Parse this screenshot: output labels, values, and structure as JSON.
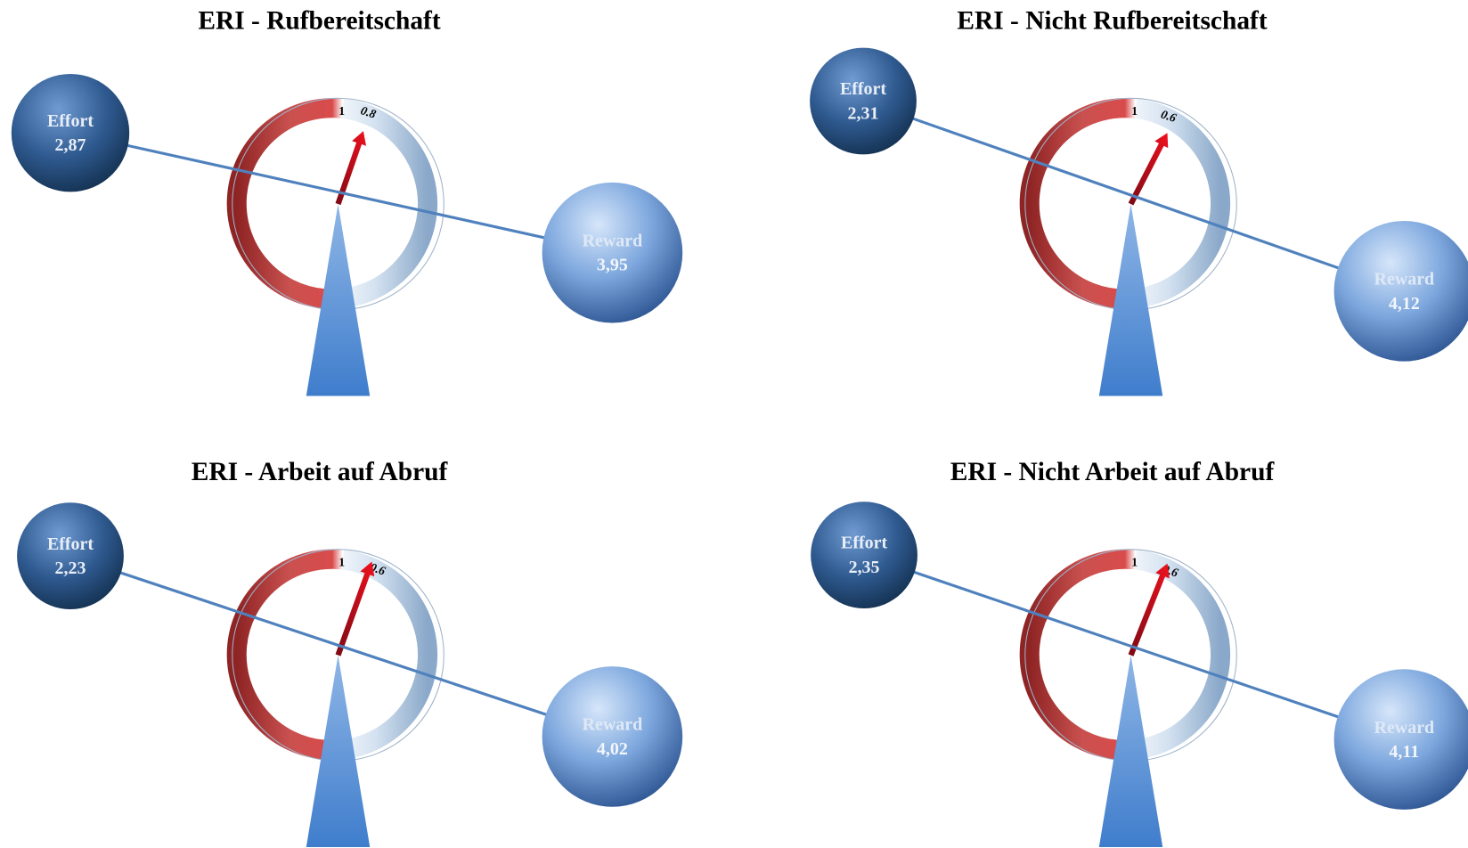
{
  "panels": [
    {
      "title": "ERI - Rufbereitschaft",
      "effort": {
        "label": "Effort",
        "value": "2,87"
      },
      "reward": {
        "label": "Reward",
        "value": "3,95"
      },
      "gauge": {
        "max_label": "1",
        "value_label": "0.8"
      }
    },
    {
      "title": "ERI - Nicht Rufbereitschaft",
      "effort": {
        "label": "Effort",
        "value": "2,31"
      },
      "reward": {
        "label": "Reward",
        "value": "4,12"
      },
      "gauge": {
        "max_label": "1",
        "value_label": "0.6"
      }
    },
    {
      "title": "ERI - Arbeit auf Abruf",
      "effort": {
        "label": "Effort",
        "value": "2,23"
      },
      "reward": {
        "label": "Reward",
        "value": "4,02"
      },
      "gauge": {
        "max_label": "1",
        "value_label": "0.6"
      }
    },
    {
      "title": "ERI - Nicht Arbeit auf Abruf",
      "effort": {
        "label": "Effort",
        "value": "2,35"
      },
      "reward": {
        "label": "Reward",
        "value": "4,11"
      },
      "gauge": {
        "max_label": "1",
        "value_label": "0.6"
      }
    }
  ]
}
